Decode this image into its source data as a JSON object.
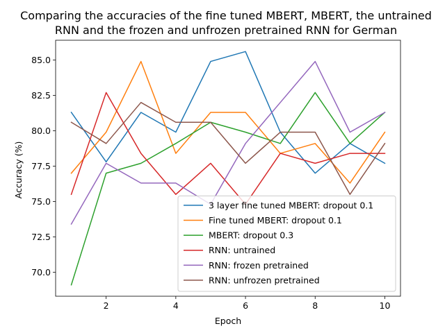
{
  "chart_data": {
    "type": "line",
    "title_lines": [
      "Comparing the accuracies of the fine tuned MBERT, MBERT, the untrained",
      "RNN and the frozen and unfrozen pretrained RNN for German"
    ],
    "xlabel": "Epoch",
    "ylabel": "Accuracy (%)",
    "xlim": [
      0.55,
      10.45
    ],
    "ylim": [
      68.3,
      86.4
    ],
    "xticks": [
      2,
      4,
      6,
      8,
      10
    ],
    "xtick_labels": [
      "2",
      "4",
      "6",
      "8",
      "10"
    ],
    "yticks": [
      70.0,
      72.5,
      75.0,
      77.5,
      80.0,
      82.5,
      85.0
    ],
    "ytick_labels": [
      "70.0",
      "72.5",
      "75.0",
      "77.5",
      "80.0",
      "82.5",
      "85.0"
    ],
    "grid": false,
    "legend_position": "lower right",
    "x": [
      1,
      2,
      3,
      4,
      5,
      6,
      7,
      8,
      9,
      10
    ],
    "series": [
      {
        "name": "3 layer fine tuned MBERT: dropout 0.1",
        "color": "#1f77b4",
        "values": [
          81.3,
          77.8,
          81.3,
          79.9,
          84.9,
          85.6,
          79.9,
          77.0,
          79.1,
          77.7
        ]
      },
      {
        "name": "Fine tuned MBERT: dropout 0.1",
        "color": "#ff7f0e",
        "values": [
          77.0,
          79.9,
          84.9,
          78.4,
          81.3,
          81.3,
          78.4,
          79.1,
          76.3,
          79.9
        ]
      },
      {
        "name": "MBERT: dropout 0.3",
        "color": "#2ca02c",
        "values": [
          69.1,
          77.0,
          77.7,
          79.1,
          80.6,
          79.9,
          79.1,
          82.7,
          79.1,
          81.3
        ]
      },
      {
        "name": "RNN: untrained",
        "color": "#d62728",
        "values": [
          75.5,
          82.7,
          78.4,
          75.5,
          77.7,
          74.8,
          78.4,
          77.7,
          78.4,
          78.4
        ]
      },
      {
        "name": "RNN: frozen pretrained",
        "color": "#9467bd",
        "values": [
          73.4,
          77.7,
          76.3,
          76.3,
          74.8,
          79.1,
          82.0,
          84.9,
          79.9,
          81.3
        ]
      },
      {
        "name": "RNN: unfrozen pretrained",
        "color": "#8c564b",
        "values": [
          80.6,
          79.1,
          82.0,
          80.6,
          80.6,
          77.7,
          79.9,
          79.9,
          75.5,
          79.1
        ]
      }
    ]
  }
}
